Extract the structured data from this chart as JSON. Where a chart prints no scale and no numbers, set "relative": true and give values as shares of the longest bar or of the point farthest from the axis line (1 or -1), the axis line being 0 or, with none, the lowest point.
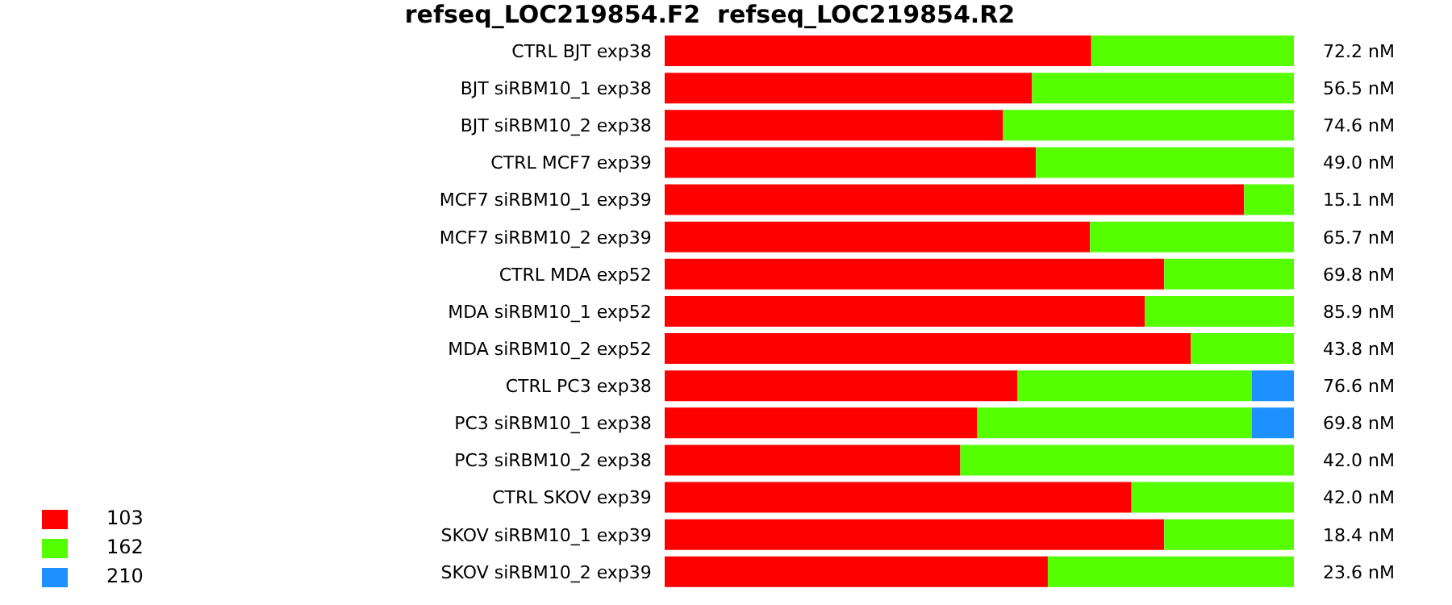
{
  "chart_data": {
    "type": "bar",
    "orientation": "horizontal",
    "stacked": true,
    "relative": true,
    "title": "refseq_LOC219854.F2  refseq_LOC219854.R2",
    "categories": [
      "CTRL BJT  exp38",
      "BJT siRBM10_1  exp38",
      "BJT siRBM10_2  exp38",
      "CTRL MCF7  exp39",
      "MCF7 siRBM10_1  exp39",
      "MCF7 siRBM10_2  exp39",
      "CTRL MDA  exp52",
      "MDA siRBM10_1 exp52",
      "MDA siRBM10_2 exp52",
      "CTRL PC3  exp38",
      "PC3 siRBM10_1 exp38",
      "PC3 siRBM10_2 exp38",
      "CTRL SKOV  exp39",
      "SKOV siRBM10_1 exp39",
      "SKOV siRBM10_2 exp39"
    ],
    "series": [
      {
        "name": "103",
        "color": "#ff0000",
        "values": [
          0.678,
          0.584,
          0.538,
          0.59,
          0.921,
          0.676,
          0.794,
          0.763,
          0.836,
          0.561,
          0.497,
          0.47,
          0.742,
          0.794,
          0.609
        ]
      },
      {
        "name": "162",
        "color": "#55ff00",
        "values": [
          0.322,
          0.416,
          0.462,
          0.41,
          0.079,
          0.324,
          0.206,
          0.237,
          0.164,
          0.372,
          0.436,
          0.53,
          0.258,
          0.206,
          0.391
        ]
      },
      {
        "name": "210",
        "color": "#1e90ff",
        "values": [
          null,
          null,
          null,
          null,
          null,
          null,
          null,
          null,
          null,
          0.067,
          0.067,
          null,
          null,
          null,
          null
        ]
      }
    ],
    "annotations": [
      "72.2 nM",
      "56.5 nM",
      "74.6 nM",
      "49.0 nM",
      "15.1 nM",
      "65.7 nM",
      "69.8 nM",
      "85.9 nM",
      "43.8 nM",
      "76.6 nM",
      "69.8 nM",
      "42.0 nM",
      "42.0 nM",
      "18.4 nM",
      "23.6 nM"
    ],
    "legend": "bottom left"
  }
}
